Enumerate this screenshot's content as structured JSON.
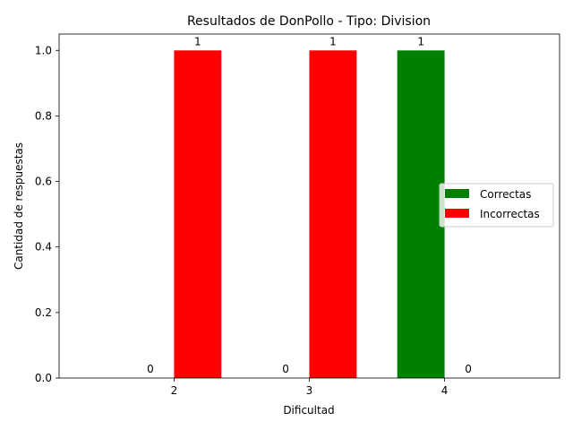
{
  "chart_data": {
    "type": "bar",
    "title": "Resultados de DonPollo - Tipo: Division",
    "xlabel": "Dificultad",
    "ylabel": "Cantidad de respuestas",
    "categories": [
      "2",
      "3",
      "4"
    ],
    "series": [
      {
        "name": "Correctas",
        "values": [
          0,
          0,
          1
        ],
        "color": "#008000"
      },
      {
        "name": "Incorrectas",
        "values": [
          1,
          1,
          0
        ],
        "color": "#ff0000"
      }
    ],
    "ylim": [
      0,
      1.05
    ],
    "yticks": [
      "0.0",
      "0.2",
      "0.4",
      "0.6",
      "0.8",
      "1.0"
    ],
    "data_labels": true,
    "grid": false,
    "legend_position": "center-right"
  }
}
